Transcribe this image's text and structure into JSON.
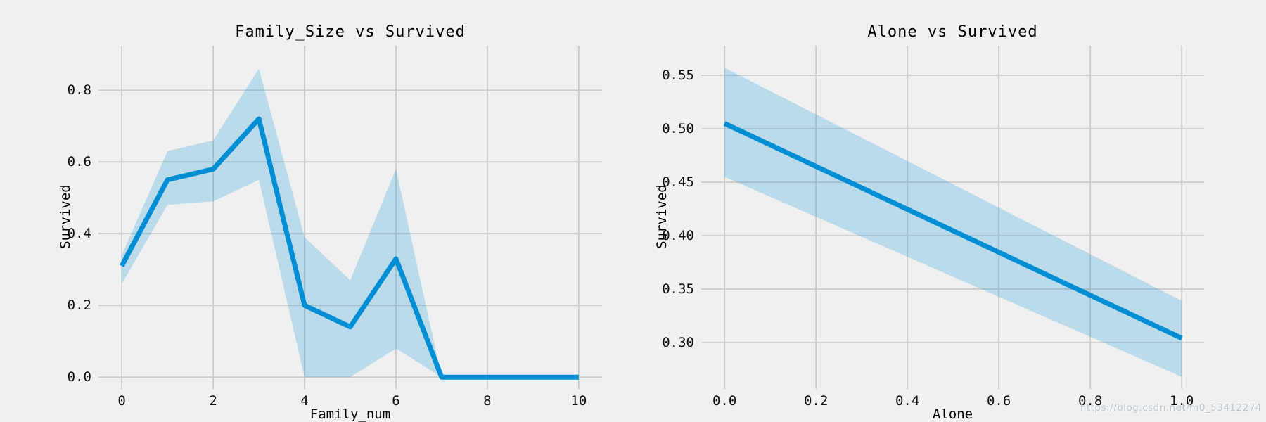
{
  "figure": {
    "background": "#f0f0f0",
    "grid_color": "#cbcbcb",
    "line_color": "#008fd5",
    "band_color": "#008fd5",
    "band_opacity": 0.22,
    "text_color": "#000000"
  },
  "watermark": {
    "text": "https://blog.csdn.net/m0_53412274",
    "color": "#b9c6d2"
  },
  "chart_data": [
    {
      "type": "line",
      "title": "Family_Size vs Survived",
      "xlabel": "Family_num",
      "ylabel": "Survived",
      "x": [
        0,
        1,
        2,
        3,
        4,
        5,
        6,
        7,
        8,
        9,
        10
      ],
      "y": [
        0.31,
        0.55,
        0.58,
        0.72,
        0.2,
        0.14,
        0.33,
        0.0,
        0.0,
        0.0,
        0.0
      ],
      "ci_upper": [
        0.34,
        0.63,
        0.66,
        0.86,
        0.39,
        0.27,
        0.58,
        0.0,
        0.0,
        0.0,
        0.0
      ],
      "ci_lower": [
        0.26,
        0.48,
        0.49,
        0.55,
        0.0,
        0.0,
        0.08,
        0.0,
        0.0,
        0.0,
        0.0
      ],
      "xlim": [
        -0.51,
        10.51
      ],
      "ylim": [
        -0.033,
        0.924
      ],
      "xticks": [
        0,
        2,
        4,
        6,
        8,
        10
      ],
      "xtick_labels": [
        "0",
        "2",
        "4",
        "6",
        "8",
        "10"
      ],
      "yticks": [
        0.0,
        0.2,
        0.4,
        0.6,
        0.8
      ],
      "ytick_labels": [
        "0.0",
        "0.2",
        "0.4",
        "0.6",
        "0.8"
      ],
      "grid": true,
      "legend": null
    },
    {
      "type": "line",
      "title": "Alone vs Survived",
      "xlabel": "Alone",
      "ylabel": "Survived",
      "x": [
        0,
        1
      ],
      "y": [
        0.505,
        0.304
      ],
      "ci_upper": [
        0.557,
        0.339
      ],
      "ci_lower": [
        0.455,
        0.268
      ],
      "xlim": [
        -0.051,
        1.049
      ],
      "ylim": [
        0.2566,
        0.5776
      ],
      "xticks": [
        0.0,
        0.2,
        0.4,
        0.6,
        0.8,
        1.0
      ],
      "xtick_labels": [
        "0.0",
        "0.2",
        "0.4",
        "0.6",
        "0.8",
        "1.0"
      ],
      "yticks": [
        0.3,
        0.35,
        0.4,
        0.45,
        0.5,
        0.55
      ],
      "ytick_labels": [
        "0.30",
        "0.35",
        "0.40",
        "0.45",
        "0.50",
        "0.55"
      ],
      "grid": true,
      "legend": null
    }
  ]
}
